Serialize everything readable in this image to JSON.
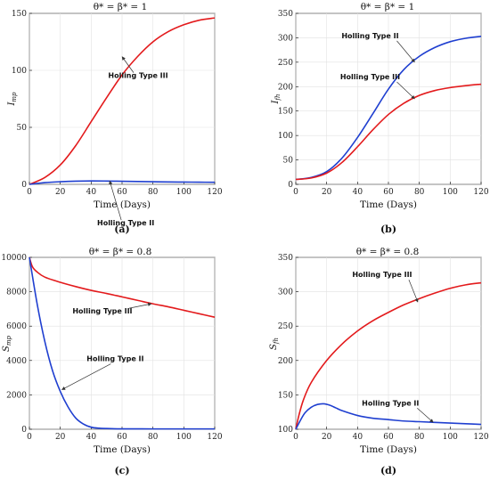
{
  "chart_data": [
    {
      "type": "line",
      "panel_label": "(a)",
      "title": "θ* = β* = 1",
      "xlabel": "Time (Days)",
      "ylabel": "I",
      "ylabel_sub": "mp",
      "xlim": [
        0,
        120
      ],
      "ylim": [
        0,
        150
      ],
      "xticks": [
        "0",
        "20",
        "40",
        "60",
        "80",
        "100",
        "120"
      ],
      "yticks": [
        "0",
        "50",
        "100",
        "150"
      ],
      "grid": true,
      "series": [
        {
          "name": "Holling Type III",
          "color": "#e31a1c",
          "x": [
            0,
            10,
            20,
            30,
            40,
            50,
            60,
            70,
            80,
            90,
            100,
            110,
            120
          ],
          "y": [
            0,
            6,
            17,
            34,
            55,
            76,
            96,
            112,
            125,
            134,
            140,
            144,
            146
          ]
        },
        {
          "name": "Holling Type II",
          "color": "#1f3fd0",
          "x": [
            0,
            10,
            20,
            30,
            40,
            50,
            60,
            70,
            80,
            90,
            100,
            110,
            120
          ],
          "y": [
            0,
            1.5,
            2.3,
            2.8,
            3.0,
            2.9,
            2.7,
            2.5,
            2.3,
            2.1,
            2.0,
            1.9,
            1.8
          ]
        }
      ],
      "annotations": [
        {
          "text": "Holling Type III",
          "series": 0,
          "point": [
            60,
            112
          ]
        },
        {
          "text": "Holling Type II",
          "series": 1,
          "point": [
            52,
            3
          ]
        }
      ]
    },
    {
      "type": "line",
      "panel_label": "(b)",
      "title": "θ* = β* = 1",
      "xlabel": "Time (Days)",
      "ylabel": "I",
      "ylabel_sub": "fh",
      "xlim": [
        0,
        120
      ],
      "ylim": [
        0,
        350
      ],
      "xticks": [
        "0",
        "20",
        "40",
        "60",
        "80",
        "100",
        "120"
      ],
      "yticks": [
        "0",
        "50",
        "100",
        "150",
        "200",
        "250",
        "300",
        "350"
      ],
      "grid": true,
      "series": [
        {
          "name": "Holling Type II",
          "color": "#1f3fd0",
          "x": [
            0,
            10,
            20,
            30,
            40,
            50,
            60,
            70,
            80,
            90,
            100,
            110,
            120
          ],
          "y": [
            10,
            14,
            26,
            54,
            96,
            145,
            195,
            235,
            262,
            280,
            292,
            299,
            303
          ]
        },
        {
          "name": "Holling Type III",
          "color": "#e31a1c",
          "x": [
            0,
            10,
            20,
            30,
            40,
            50,
            60,
            70,
            80,
            90,
            100,
            110,
            120
          ],
          "y": [
            10,
            13,
            23,
            45,
            77,
            112,
            143,
            166,
            182,
            192,
            198,
            202,
            205
          ]
        }
      ],
      "annotations": [
        {
          "text": "Holling Type II",
          "series": 0,
          "point": [
            77,
            250
          ]
        },
        {
          "text": "Holling Type III",
          "series": 1,
          "point": [
            77,
            175
          ]
        }
      ]
    },
    {
      "type": "line",
      "panel_label": "(c)",
      "title": "θ* = β* = 0.8",
      "xlabel": "Time (Days)",
      "ylabel": "S",
      "ylabel_sub": "mp",
      "xlim": [
        0,
        120
      ],
      "ylim": [
        0,
        10000
      ],
      "xticks": [
        "0",
        "20",
        "40",
        "60",
        "80",
        "100",
        "120"
      ],
      "yticks": [
        "0",
        "2000",
        "4000",
        "6000",
        "8000",
        "10000"
      ],
      "grid": true,
      "series": [
        {
          "name": "Holling Type III",
          "color": "#e31a1c",
          "x": [
            0,
            2,
            5,
            10,
            20,
            30,
            40,
            50,
            60,
            70,
            80,
            90,
            100,
            110,
            120
          ],
          "y": [
            10000,
            9450,
            9150,
            8850,
            8550,
            8300,
            8080,
            7900,
            7700,
            7500,
            7300,
            7120,
            6920,
            6720,
            6520
          ]
        },
        {
          "name": "Holling Type II",
          "color": "#1f3fd0",
          "x": [
            0,
            5,
            10,
            15,
            20,
            25,
            30,
            35,
            40,
            45,
            50,
            60,
            80,
            100,
            120
          ],
          "y": [
            10000,
            7300,
            5100,
            3400,
            2200,
            1300,
            650,
            300,
            120,
            60,
            40,
            25,
            20,
            20,
            20
          ]
        }
      ],
      "annotations": [
        {
          "text": "Holling Type III",
          "series": 0,
          "point": [
            79,
            7300
          ]
        },
        {
          "text": "Holling Type II",
          "series": 1,
          "point": [
            21,
            2300
          ]
        }
      ]
    },
    {
      "type": "line",
      "panel_label": "(d)",
      "title": "θ* = β* = 0.8",
      "xlabel": "Time (Days)",
      "ylabel": "S",
      "ylabel_sub": "fh",
      "xlim": [
        0,
        120
      ],
      "ylim": [
        100,
        350
      ],
      "xticks": [
        "0",
        "20",
        "40",
        "60",
        "80",
        "100",
        "120"
      ],
      "yticks": [
        "100",
        "150",
        "200",
        "250",
        "300",
        "350"
      ],
      "grid": true,
      "series": [
        {
          "name": "Holling Type III",
          "color": "#e31a1c",
          "x": [
            0,
            2,
            5,
            10,
            20,
            30,
            40,
            50,
            60,
            70,
            80,
            90,
            100,
            110,
            120
          ],
          "y": [
            100,
            120,
            143,
            168,
            200,
            224,
            243,
            258,
            270,
            281,
            290,
            298,
            305,
            310,
            313
          ]
        },
        {
          "name": "Holling Type II",
          "color": "#1f3fd0",
          "x": [
            0,
            3,
            6,
            10,
            14,
            18,
            22,
            26,
            30,
            40,
            50,
            60,
            70,
            80,
            90,
            100,
            110,
            120
          ],
          "y": [
            100,
            113,
            124,
            132,
            136,
            137,
            135,
            131,
            127,
            120,
            116,
            114,
            112,
            111,
            110,
            109,
            108,
            107
          ]
        }
      ],
      "annotations": [
        {
          "text": "Holling Type III",
          "series": 0,
          "point": [
            79,
            285
          ]
        },
        {
          "text": "Holling Type II",
          "series": 1,
          "point": [
            89,
            110
          ]
        }
      ]
    }
  ]
}
